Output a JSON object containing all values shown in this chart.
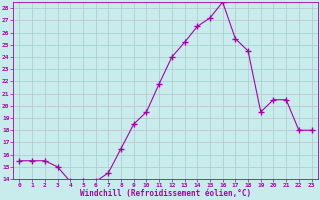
{
  "x": [
    0,
    1,
    2,
    3,
    4,
    5,
    6,
    7,
    8,
    9,
    10,
    11,
    12,
    13,
    14,
    15,
    16,
    17,
    18,
    19,
    20,
    21,
    22,
    23
  ],
  "y": [
    15.5,
    15.5,
    15.5,
    15.0,
    13.8,
    13.8,
    13.8,
    14.5,
    16.5,
    18.5,
    19.5,
    21.8,
    24.0,
    25.2,
    26.5,
    27.2,
    28.5,
    25.5,
    24.5,
    19.5,
    20.5,
    20.5,
    18.0,
    18.0
  ],
  "line_color": "#aa00aa",
  "marker": "+",
  "marker_size": 4,
  "bg_color": "#c8ecec",
  "grid_color": "#b0c8c8",
  "xlabel": "Windchill (Refroidissement éolien,°C)",
  "xlabel_color": "#aa00aa",
  "tick_color": "#aa00aa",
  "ylim": [
    14,
    28.5
  ],
  "xlim": [
    -0.5,
    23.5
  ],
  "yticks": [
    14,
    15,
    16,
    17,
    18,
    19,
    20,
    21,
    22,
    23,
    24,
    25,
    26,
    27,
    28
  ],
  "xticks": [
    0,
    1,
    2,
    3,
    4,
    5,
    6,
    7,
    8,
    9,
    10,
    11,
    12,
    13,
    14,
    15,
    16,
    17,
    18,
    19,
    20,
    21,
    22,
    23
  ],
  "figsize": [
    3.2,
    2.0
  ],
  "dpi": 100
}
